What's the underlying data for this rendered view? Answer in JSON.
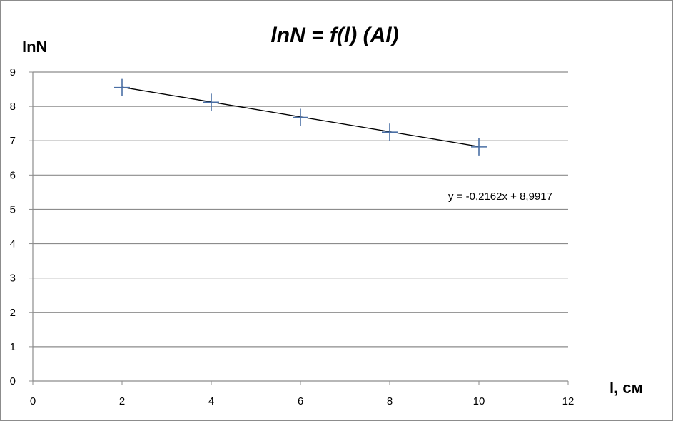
{
  "chart_data": {
    "type": "scatter",
    "title": "lnN = f(l) (Al)",
    "xlabel": "l, см",
    "ylabel": "lnN",
    "xlim": [
      0,
      12
    ],
    "ylim": [
      0,
      9
    ],
    "xticks": [
      "0",
      "2",
      "4",
      "6",
      "8",
      "10",
      "12"
    ],
    "yticks": [
      "0",
      "1",
      "2",
      "3",
      "4",
      "5",
      "6",
      "7",
      "8",
      "9"
    ],
    "grid": "horizontal",
    "legend": "none",
    "series": [
      {
        "marker": "cross",
        "color": "#4a6fa5",
        "points": [
          {
            "x": 2,
            "y": 8.55
          },
          {
            "x": 4,
            "y": 8.12
          },
          {
            "x": 6,
            "y": 7.68
          },
          {
            "x": 8,
            "y": 7.25
          },
          {
            "x": 10,
            "y": 6.82
          }
        ]
      }
    ],
    "trendline": {
      "type": "linear",
      "slope": -0.2162,
      "intercept": 8.9917,
      "x_range": [
        2,
        10
      ],
      "color": "#000000",
      "equation": "y = -0,2162x + 8,9917"
    }
  }
}
